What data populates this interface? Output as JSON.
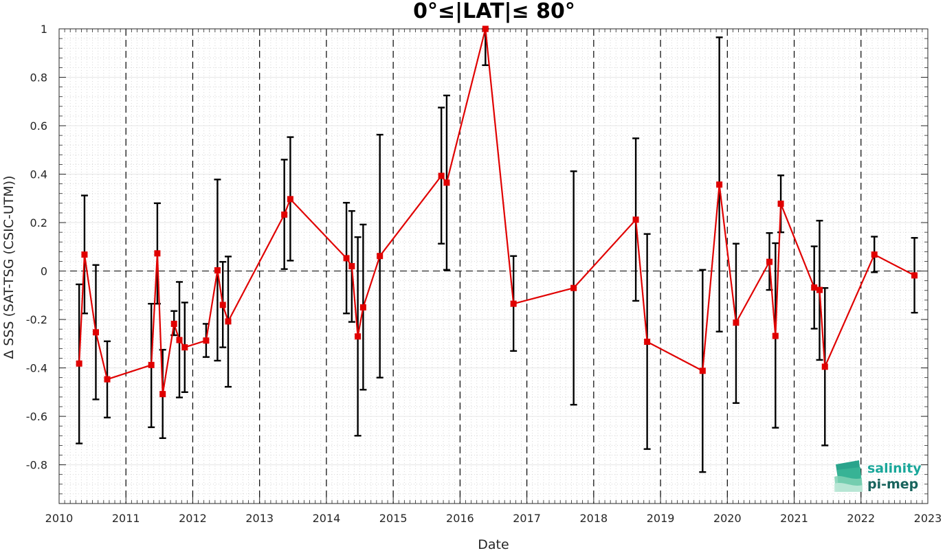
{
  "chart_data": {
    "type": "scatter",
    "title": "0°≤|LAT|≤ 80°",
    "xlabel": "Date",
    "ylabel": "Δ SSS (SAT-TSG (CSIC-UTM))",
    "x_ticks": [
      "2010",
      "2011",
      "2012",
      "2013",
      "2014",
      "2015",
      "2016",
      "2017",
      "2018",
      "2019",
      "2020",
      "2021",
      "2022",
      "2023"
    ],
    "y_ticks": [
      "-0.8",
      "-0.6",
      "-0.4",
      "-0.2",
      "0",
      "0.2",
      "0.4",
      "0.6",
      "0.8",
      "1"
    ],
    "xlim": [
      2010.0,
      2023.0
    ],
    "ylim": [
      -0.96,
      1.0
    ],
    "grid": true,
    "year_lines": "dashed",
    "zero_line": "dashed",
    "line_color": "#e00000",
    "errorbar_color": "#000000",
    "series": [
      {
        "points": [
          {
            "x": 2010.3,
            "y": -0.382,
            "low": -0.712,
            "high": -0.055
          },
          {
            "x": 2010.38,
            "y": 0.068,
            "low": -0.175,
            "high": 0.312
          },
          {
            "x": 2010.55,
            "y": -0.253,
            "low": -0.53,
            "high": 0.025
          },
          {
            "x": 2010.72,
            "y": -0.447,
            "low": -0.605,
            "high": -0.29
          },
          {
            "x": 2011.38,
            "y": -0.388,
            "low": -0.645,
            "high": -0.135
          },
          {
            "x": 2011.47,
            "y": 0.073,
            "low": -0.135,
            "high": 0.28
          },
          {
            "x": 2011.55,
            "y": -0.508,
            "low": -0.69,
            "high": -0.325
          },
          {
            "x": 2011.72,
            "y": -0.218,
            "low": -0.265,
            "high": -0.165
          },
          {
            "x": 2011.8,
            "y": -0.285,
            "low": -0.522,
            "high": -0.045
          },
          {
            "x": 2011.88,
            "y": -0.315,
            "low": -0.5,
            "high": -0.13
          },
          {
            "x": 2012.2,
            "y": -0.287,
            "low": -0.355,
            "high": -0.218
          },
          {
            "x": 2012.37,
            "y": 0.003,
            "low": -0.37,
            "high": 0.378
          },
          {
            "x": 2012.45,
            "y": -0.14,
            "low": -0.315,
            "high": 0.038
          },
          {
            "x": 2012.53,
            "y": -0.208,
            "low": -0.478,
            "high": 0.06
          },
          {
            "x": 2013.37,
            "y": 0.233,
            "low": 0.008,
            "high": 0.46
          },
          {
            "x": 2013.46,
            "y": 0.297,
            "low": 0.043,
            "high": 0.553
          },
          {
            "x": 2014.3,
            "y": 0.053,
            "low": -0.175,
            "high": 0.282
          },
          {
            "x": 2014.38,
            "y": 0.02,
            "low": -0.21,
            "high": 0.248
          },
          {
            "x": 2014.47,
            "y": -0.27,
            "low": -0.68,
            "high": 0.14
          },
          {
            "x": 2014.55,
            "y": -0.15,
            "low": -0.49,
            "high": 0.192
          },
          {
            "x": 2014.8,
            "y": 0.062,
            "low": -0.44,
            "high": 0.563
          },
          {
            "x": 2015.72,
            "y": 0.393,
            "low": 0.113,
            "high": 0.675
          },
          {
            "x": 2015.8,
            "y": 0.365,
            "low": 0.005,
            "high": 0.725
          },
          {
            "x": 2016.38,
            "y": 1.0,
            "low": 0.85,
            "high": 1.0
          },
          {
            "x": 2016.8,
            "y": -0.135,
            "low": -0.33,
            "high": 0.062
          },
          {
            "x": 2017.7,
            "y": -0.07,
            "low": -0.552,
            "high": 0.412
          },
          {
            "x": 2018.63,
            "y": 0.212,
            "low": -0.123,
            "high": 0.548
          },
          {
            "x": 2018.8,
            "y": -0.292,
            "low": -0.735,
            "high": 0.153
          },
          {
            "x": 2019.63,
            "y": -0.412,
            "low": -0.83,
            "high": 0.005
          },
          {
            "x": 2019.88,
            "y": 0.357,
            "low": -0.25,
            "high": 0.965
          },
          {
            "x": 2020.13,
            "y": -0.213,
            "low": -0.545,
            "high": 0.113
          },
          {
            "x": 2020.63,
            "y": 0.038,
            "low": -0.078,
            "high": 0.157
          },
          {
            "x": 2020.72,
            "y": -0.268,
            "low": -0.647,
            "high": 0.115
          },
          {
            "x": 2020.8,
            "y": 0.278,
            "low": 0.16,
            "high": 0.395
          },
          {
            "x": 2021.3,
            "y": -0.068,
            "low": -0.238,
            "high": 0.102
          },
          {
            "x": 2021.38,
            "y": -0.078,
            "low": -0.367,
            "high": 0.208
          },
          {
            "x": 2021.46,
            "y": -0.395,
            "low": -0.72,
            "high": -0.07
          },
          {
            "x": 2022.2,
            "y": 0.068,
            "low": -0.005,
            "high": 0.142
          },
          {
            "x": 2022.8,
            "y": -0.018,
            "low": -0.172,
            "high": 0.137
          }
        ]
      }
    ]
  },
  "logo": {
    "line1": "salinity",
    "line2": "pi-mep",
    "color1": "#1aa79a",
    "color2": "#17635c"
  }
}
